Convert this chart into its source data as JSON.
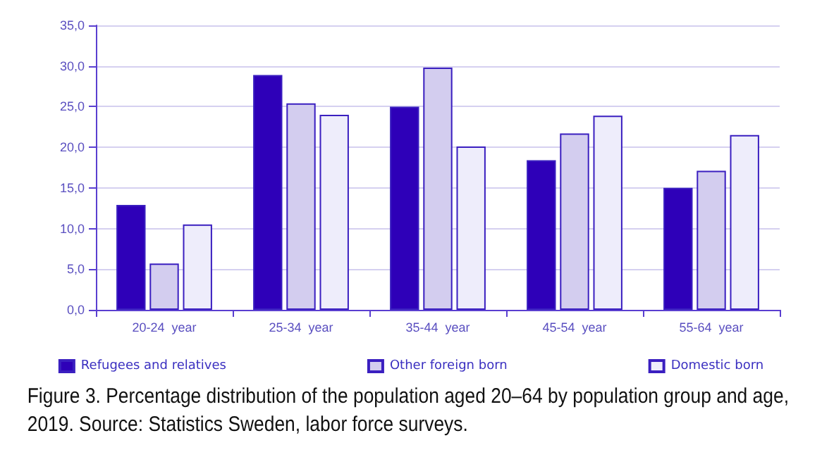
{
  "chart_data": {
    "type": "bar",
    "categories": [
      "20-24  year",
      "25-34  year",
      "35-44  year",
      "45-54  year",
      "55-64  year"
    ],
    "series": [
      {
        "name": "Refugees and relatives",
        "color": "#2e00b8",
        "values": [
          12.9,
          28.9,
          25.0,
          18.4,
          15.0
        ]
      },
      {
        "name": "Other foreign born",
        "color": "#d3cdef",
        "values": [
          5.7,
          25.4,
          29.8,
          21.7,
          17.1
        ]
      },
      {
        "name": "Domestic born",
        "color": "#eeedfb",
        "values": [
          10.5,
          24.0,
          20.1,
          23.9,
          21.5
        ]
      }
    ],
    "ylim": [
      0,
      35
    ],
    "yticks": [
      {
        "value": 0,
        "label": "0,0"
      },
      {
        "value": 5,
        "label": "5,0"
      },
      {
        "value": 10,
        "label": "10,0"
      },
      {
        "value": 15,
        "label": "15,0"
      },
      {
        "value": 20,
        "label": "20,0"
      },
      {
        "value": 25,
        "label": "25,0"
      },
      {
        "value": 30,
        "label": "30,0"
      },
      {
        "value": 35,
        "label": "35,0"
      }
    ],
    "grid": "y",
    "legend": "bottom",
    "annotations": [
      "Figure 3. Percentage distribution of the population aged 20–64 by population group and age, 2019. Source: Statistics Sweden, labor force surveys."
    ]
  }
}
